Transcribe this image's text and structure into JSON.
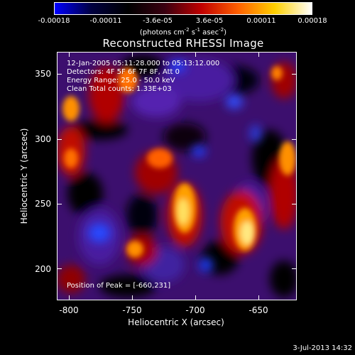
{
  "colorbar": {
    "tick_labels": [
      "-0.00018",
      "-0.00011",
      "-3.6e-05",
      "3.6e-05",
      "0.00011",
      "0.00018"
    ],
    "units_prefix": "(photons cm",
    "units_exp1": "-2",
    "units_mid": " s",
    "units_exp2": "-1",
    "units_mid2": " asec",
    "units_exp3": "-2",
    "units_suffix": ")",
    "colors": [
      "#0000ff",
      "#000040",
      "#000000",
      "#3a0010",
      "#c00000",
      "#ff6000",
      "#ffd000",
      "#ffffff"
    ]
  },
  "title": "Reconstructed RHESSI Image",
  "info": {
    "line1": "12-Jan-2005 05:11:28.000 to 05:13:12.000",
    "line2": "Detectors: 4F 5F 6F 7F 8F, Att 0",
    "line3": "Energy Range: 25.0 - 50.0 keV",
    "line4": "Clean    Total counts: 1.33E+03"
  },
  "peak": "Position of Peak = [-660,231]",
  "axes": {
    "xlabel": "Heliocentric X (arcsec)",
    "ylabel": "Heliocentric Y (arcsec)",
    "xticks": [
      -800,
      -750,
      -700,
      -650
    ],
    "yticks": [
      200,
      250,
      300,
      350
    ],
    "xlim": [
      -810,
      -620
    ],
    "ylim": [
      173,
      367
    ]
  },
  "timestamp": "3-Jul-2013 14:32"
}
